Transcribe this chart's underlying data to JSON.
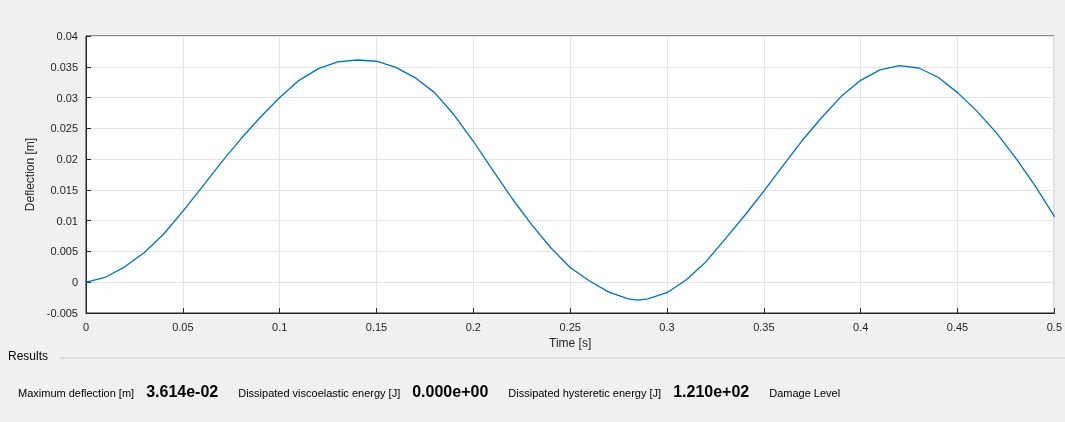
{
  "chart_data": {
    "type": "line",
    "xlabel": "Time [s]",
    "ylabel": "Deflection [m]",
    "x": [
      0,
      0.01,
      0.02,
      0.03,
      0.04,
      0.05,
      0.06,
      0.07,
      0.08,
      0.09,
      0.1,
      0.11,
      0.12,
      0.13,
      0.14,
      0.15,
      0.16,
      0.17,
      0.18,
      0.19,
      0.2,
      0.21,
      0.22,
      0.23,
      0.24,
      0.25,
      0.26,
      0.27,
      0.28,
      0.285,
      0.29,
      0.3,
      0.31,
      0.32,
      0.33,
      0.34,
      0.35,
      0.36,
      0.37,
      0.38,
      0.39,
      0.4,
      0.41,
      0.42,
      0.43,
      0.44,
      0.45,
      0.46,
      0.47,
      0.48,
      0.49,
      0.5
    ],
    "series": [
      {
        "color": "#0072bd",
        "values": [
          0,
          0.0008,
          0.0025,
          0.0048,
          0.0078,
          0.0115,
          0.0155,
          0.0195,
          0.0233,
          0.0268,
          0.03,
          0.0328,
          0.0347,
          0.0358,
          0.0361,
          0.0359,
          0.0349,
          0.0332,
          0.0308,
          0.0272,
          0.0229,
          0.0182,
          0.0136,
          0.0094,
          0.0056,
          0.0024,
          0.0002,
          -0.0016,
          -0.0027,
          -0.0029,
          -0.0027,
          -0.0017,
          0.0004,
          0.0033,
          0.007,
          0.0108,
          0.0148,
          0.019,
          0.0231,
          0.0268,
          0.0302,
          0.0328,
          0.0345,
          0.0352,
          0.0348,
          0.0333,
          0.0308,
          0.0278,
          0.0243,
          0.0202,
          0.0157,
          0.0107
        ]
      }
    ],
    "xlim": [
      0,
      0.5
    ],
    "xticks": [
      0,
      0.05,
      0.1,
      0.15,
      0.2,
      0.25,
      0.3,
      0.35,
      0.4,
      0.45,
      0.5
    ],
    "ylim": [
      -0.005,
      0.04
    ],
    "yticks": [
      -0.005,
      0,
      0.005,
      0.01,
      0.015,
      0.02,
      0.025,
      0.03,
      0.035,
      0.04
    ],
    "grid": true,
    "marker": "none",
    "line_style": "solid",
    "annotations": [
      "Results",
      "Maximum deflection [m]",
      "3.614e-02",
      "Dissipated viscoelastic energy [J]",
      "0.000e+00",
      "Dissipated hysteretic energy [J]",
      "1.210e+02",
      "Damage Level"
    ]
  }
}
